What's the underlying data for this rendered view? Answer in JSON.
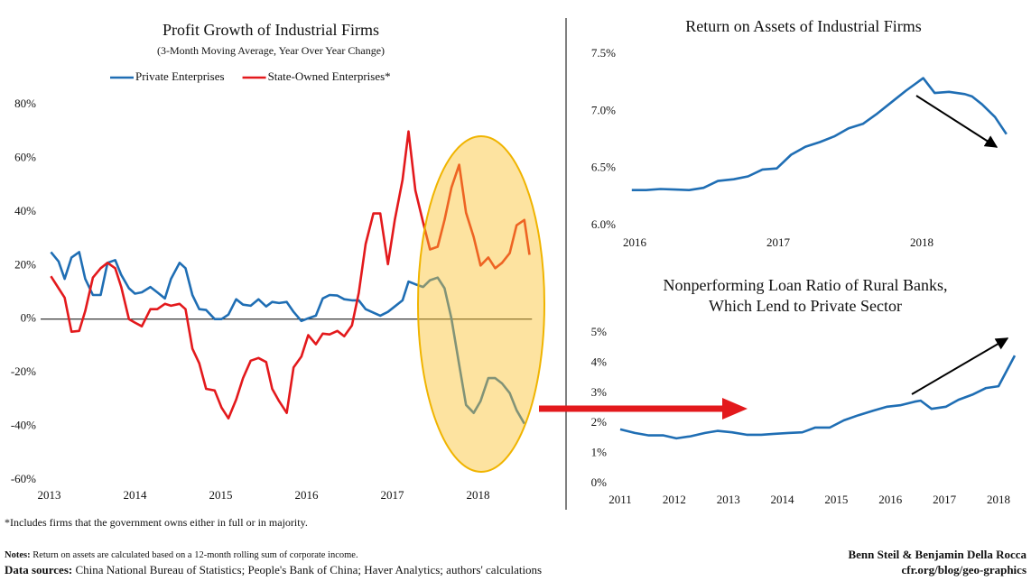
{
  "chart_data": [
    {
      "type": "line",
      "title": "Profit Growth of Industrial Firms",
      "subtitle": "(3-Month Moving Average, Year Over Year Change)",
      "legend": "top",
      "zero_line": true,
      "xlim": [
        2012.9,
        2018.65
      ],
      "xticks": [
        2013,
        2014,
        2015,
        2016,
        2017,
        2018
      ],
      "ylim": [
        -60,
        80
      ],
      "yticks": [
        {
          "value": -60,
          "label": "-60%"
        },
        {
          "value": -40,
          "label": "-40%"
        },
        {
          "value": -20,
          "label": "-20%"
        },
        {
          "value": 0,
          "label": "0%"
        },
        {
          "value": 20,
          "label": "20%"
        },
        {
          "value": 40,
          "label": "40%"
        },
        {
          "value": 60,
          "label": "60%"
        },
        {
          "value": 80,
          "label": "80%"
        }
      ],
      "series": [
        {
          "name": "Private Enterprises",
          "color": "#1f6eb4",
          "x": [
            2013.02,
            2013.11,
            2013.18,
            2013.26,
            2013.35,
            2013.42,
            2013.51,
            2013.6,
            2013.68,
            2013.77,
            2013.84,
            2013.93,
            2014.0,
            2014.08,
            2014.18,
            2014.26,
            2014.35,
            2014.42,
            2014.52,
            2014.59,
            2014.67,
            2014.75,
            2014.83,
            2014.93,
            2015.01,
            2015.09,
            2015.18,
            2015.26,
            2015.35,
            2015.44,
            2015.53,
            2015.6,
            2015.68,
            2015.77,
            2015.85,
            2015.94,
            2016.02,
            2016.11,
            2016.19,
            2016.27,
            2016.36,
            2016.44,
            2016.53,
            2016.61,
            2016.69,
            2016.78,
            2016.86,
            2016.95,
            2017.03,
            2017.12,
            2017.19,
            2017.27,
            2017.36,
            2017.44,
            2017.53,
            2017.61,
            2017.69,
            2017.78,
            2017.86,
            2017.95,
            2018.03,
            2018.12,
            2018.2,
            2018.28,
            2018.37,
            2018.45,
            2018.54
          ],
          "values": [
            25,
            21.5,
            15,
            23,
            25,
            15,
            9,
            9,
            21,
            22,
            16.5,
            11.5,
            9.5,
            10,
            12,
            10,
            7.7,
            15,
            21,
            19,
            9,
            3.7,
            3.4,
            0,
            0,
            1.7,
            7.4,
            5.4,
            5,
            7.4,
            4.7,
            6.4,
            6,
            6.4,
            2.7,
            -0.7,
            0.3,
            1.3,
            7.7,
            9,
            8.8,
            7.4,
            7,
            7,
            3.7,
            2.4,
            1.3,
            2.7,
            4.7,
            7,
            14,
            13,
            12,
            14.5,
            15.5,
            11.5,
            0.3,
            -17,
            -32,
            -35,
            -30.6,
            -22,
            -22,
            -24,
            -27.6,
            -34,
            -39
          ]
        },
        {
          "name": "State-Owned Enterprises*",
          "color": "#e3191c",
          "x": [
            2013.02,
            2013.11,
            2013.18,
            2013.26,
            2013.35,
            2013.42,
            2013.51,
            2013.6,
            2013.68,
            2013.77,
            2013.84,
            2013.93,
            2014.0,
            2014.08,
            2014.18,
            2014.26,
            2014.35,
            2014.42,
            2014.52,
            2014.59,
            2014.67,
            2014.75,
            2014.83,
            2014.93,
            2015.01,
            2015.09,
            2015.18,
            2015.26,
            2015.35,
            2015.44,
            2015.53,
            2015.6,
            2015.68,
            2015.77,
            2015.85,
            2015.94,
            2016.02,
            2016.11,
            2016.19,
            2016.27,
            2016.36,
            2016.44,
            2016.53,
            2016.61,
            2016.69,
            2016.78,
            2016.86,
            2016.95,
            2017.03,
            2017.12,
            2017.19,
            2017.27,
            2017.36,
            2017.44,
            2017.53,
            2017.61,
            2017.69,
            2017.78,
            2017.86,
            2017.95,
            2018.03,
            2018.12,
            2018.2,
            2018.28,
            2018.37,
            2018.45,
            2018.54,
            2018.6
          ],
          "values": [
            16,
            11.5,
            8,
            -4.7,
            -4.4,
            3,
            15.5,
            19,
            21,
            19,
            12,
            0,
            -1.3,
            -2.7,
            3.7,
            3.7,
            5.7,
            5,
            5.7,
            3.7,
            -11,
            -16.5,
            -26,
            -26.6,
            -33,
            -37,
            -30,
            -22,
            -15.5,
            -14.5,
            -16,
            -26,
            -30.6,
            -35,
            -18,
            -14,
            -6,
            -9.4,
            -5.4,
            -5.7,
            -4.4,
            -6.4,
            -2.4,
            9.8,
            28,
            39.4,
            39.4,
            20.5,
            37,
            52,
            70,
            48,
            36,
            26,
            27,
            37,
            49,
            57.6,
            39.7,
            30.6,
            20,
            23,
            19,
            21,
            24.6,
            35,
            37,
            24
          ]
        }
      ]
    },
    {
      "type": "line",
      "title": "Return on Assets of Industrial Firms",
      "xlim": [
        2015.887,
        2018.654
      ],
      "xticks": [
        2016,
        2017,
        2018
      ],
      "ylim": [
        6.0,
        7.5
      ],
      "yticks": [
        {
          "value": 6.0,
          "label": "6.0%"
        },
        {
          "value": 6.5,
          "label": "6.5%"
        },
        {
          "value": 7.0,
          "label": "7.0%"
        },
        {
          "value": 7.5,
          "label": "7.5%"
        }
      ],
      "series": [
        {
          "color": "#1f6eb4",
          "x": [
            2015.98,
            2016.08,
            2016.18,
            2016.28,
            2016.38,
            2016.48,
            2016.58,
            2016.69,
            2016.79,
            2016.89,
            2016.99,
            2017.09,
            2017.19,
            2017.29,
            2017.39,
            2017.49,
            2017.59,
            2017.69,
            2017.79,
            2017.89,
            2018.01,
            2018.09,
            2018.19,
            2018.3,
            2018.35,
            2018.42,
            2018.51,
            2018.59
          ],
          "values": [
            6.31,
            6.31,
            6.32,
            6.315,
            6.31,
            6.33,
            6.39,
            6.405,
            6.43,
            6.49,
            6.5,
            6.62,
            6.69,
            6.73,
            6.78,
            6.85,
            6.89,
            6.98,
            7.08,
            7.18,
            7.29,
            7.16,
            7.17,
            7.15,
            7.13,
            7.06,
            6.95,
            6.8
          ]
        }
      ]
    },
    {
      "type": "line",
      "title": [
        "Nonperforming Loan Ratio of Rural Banks,",
        "Which Lend to Private Sector"
      ],
      "xlim": [
        2010.967,
        2018.334
      ],
      "xticks": [
        2011,
        2012,
        2013,
        2014,
        2015,
        2016,
        2017,
        2018
      ],
      "ylim": [
        0,
        5
      ],
      "yticks": [
        {
          "value": 0,
          "label": "0%"
        },
        {
          "value": 1,
          "label": "1%"
        },
        {
          "value": 2,
          "label": "2%"
        },
        {
          "value": 3,
          "label": "3%"
        },
        {
          "value": 4,
          "label": "4%"
        },
        {
          "value": 5,
          "label": "5%"
        }
      ],
      "series": [
        {
          "color": "#1f6eb4",
          "x": [
            2011.0,
            2011.27,
            2011.53,
            2011.8,
            2012.04,
            2012.3,
            2012.57,
            2012.8,
            2013.07,
            2013.34,
            2013.61,
            2013.84,
            2014.11,
            2014.37,
            2014.61,
            2014.88,
            2015.14,
            2015.41,
            2015.68,
            2015.94,
            2016.18,
            2016.45,
            2016.56,
            2016.76,
            2017.03,
            2017.26,
            2017.53,
            2017.77,
            2018.0,
            2018.3
          ],
          "values": [
            1.8,
            1.68,
            1.6,
            1.6,
            1.5,
            1.57,
            1.68,
            1.75,
            1.7,
            1.62,
            1.62,
            1.65,
            1.68,
            1.7,
            1.86,
            1.86,
            2.1,
            2.27,
            2.42,
            2.55,
            2.6,
            2.72,
            2.75,
            2.48,
            2.55,
            2.78,
            2.96,
            3.17,
            3.23,
            4.25
          ]
        }
      ]
    }
  ],
  "footnote": "*Includes firms that the government owns either in full or in majority.",
  "notes": {
    "label": "Notes:",
    "text": "Return on assets are calculated based on a 12-month rolling sum of corporate income."
  },
  "sources": {
    "label": "Data sources:",
    "text": "China National Bureau of Statistics; People's Bank of China; Haver Analytics; authors' calculations"
  },
  "credits": [
    "Benn Steil & Benjamin Della Rocca",
    "cfr.org/blog/geo-graphics"
  ]
}
